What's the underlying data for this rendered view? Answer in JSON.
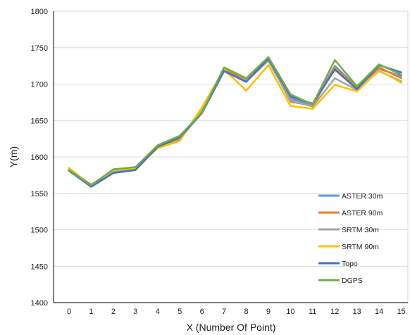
{
  "chart_data": {
    "type": "line",
    "title": "",
    "xlabel": "X (Number Of Point)",
    "ylabel": "Y(m)",
    "x": [
      0,
      1,
      2,
      3,
      4,
      5,
      6,
      7,
      8,
      9,
      10,
      11,
      12,
      13,
      14,
      15
    ],
    "xlim": [
      -0.7,
      15.3
    ],
    "ylim": [
      1400,
      1800
    ],
    "yticks": [
      1400,
      1450,
      1500,
      1550,
      1600,
      1650,
      1700,
      1750,
      1800
    ],
    "grid": "horizontal",
    "legend_position": "bottom-right",
    "series": [
      {
        "name": "ASTER 30m",
        "color": "#5b9bd5",
        "values": [
          1582,
          1561,
          1581,
          1584,
          1614,
          1625,
          1662,
          1719,
          1707,
          1733,
          1680,
          1671,
          1725,
          1696,
          1721,
          1711
        ]
      },
      {
        "name": "ASTER 90m",
        "color": "#ed7d31",
        "values": [
          1582,
          1562,
          1581,
          1583,
          1613,
          1624,
          1663,
          1720,
          1706,
          1734,
          1676,
          1670,
          1723,
          1695,
          1723,
          1708
        ]
      },
      {
        "name": "SRTM 30m",
        "color": "#a5a5a5",
        "values": [
          1583,
          1562,
          1580,
          1583,
          1614,
          1626,
          1664,
          1718,
          1704,
          1732,
          1678,
          1669,
          1708,
          1692,
          1718,
          1704
        ]
      },
      {
        "name": "SRTM 90m",
        "color": "#ffc000",
        "values": [
          1585,
          1560,
          1582,
          1584,
          1612,
          1622,
          1668,
          1720,
          1691,
          1726,
          1670,
          1666,
          1699,
          1690,
          1719,
          1702
        ]
      },
      {
        "name": "Topo",
        "color": "#4472c4",
        "values": [
          1581,
          1559,
          1578,
          1582,
          1614,
          1627,
          1660,
          1718,
          1703,
          1735,
          1683,
          1673,
          1720,
          1693,
          1726,
          1716
        ]
      },
      {
        "name": "DGPS",
        "color": "#70ad47",
        "values": [
          1582,
          1561,
          1583,
          1586,
          1616,
          1629,
          1661,
          1723,
          1708,
          1737,
          1686,
          1672,
          1733,
          1697,
          1727,
          1713
        ]
      }
    ]
  }
}
